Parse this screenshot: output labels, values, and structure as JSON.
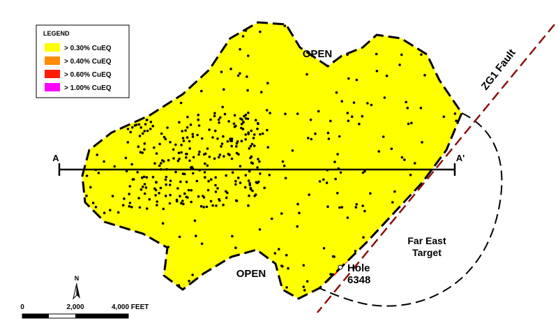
{
  "legend": {
    "title": "LEGEND",
    "items": [
      {
        "label": "> 0.30% CuEQ",
        "color": "#ffff00"
      },
      {
        "label": "> 0.40% CuEQ",
        "color": "#ff8c00"
      },
      {
        "label": "> 0.60% CuEQ",
        "color": "#ff1a00"
      },
      {
        "label": "> 1.00% CuEQ",
        "color": "#ff00ff"
      }
    ]
  },
  "labels": {
    "open_top": "OPEN",
    "open_bottom": "OPEN",
    "section_start": "A",
    "section_end": "A'",
    "fault": "ZG1 Fault",
    "target": [
      "Far East",
      "Target"
    ],
    "hole": [
      "Hole",
      "6348"
    ]
  },
  "scale_bar": {
    "north": "N",
    "ticks": [
      "0",
      "2,000",
      "4,000 FEET"
    ]
  }
}
